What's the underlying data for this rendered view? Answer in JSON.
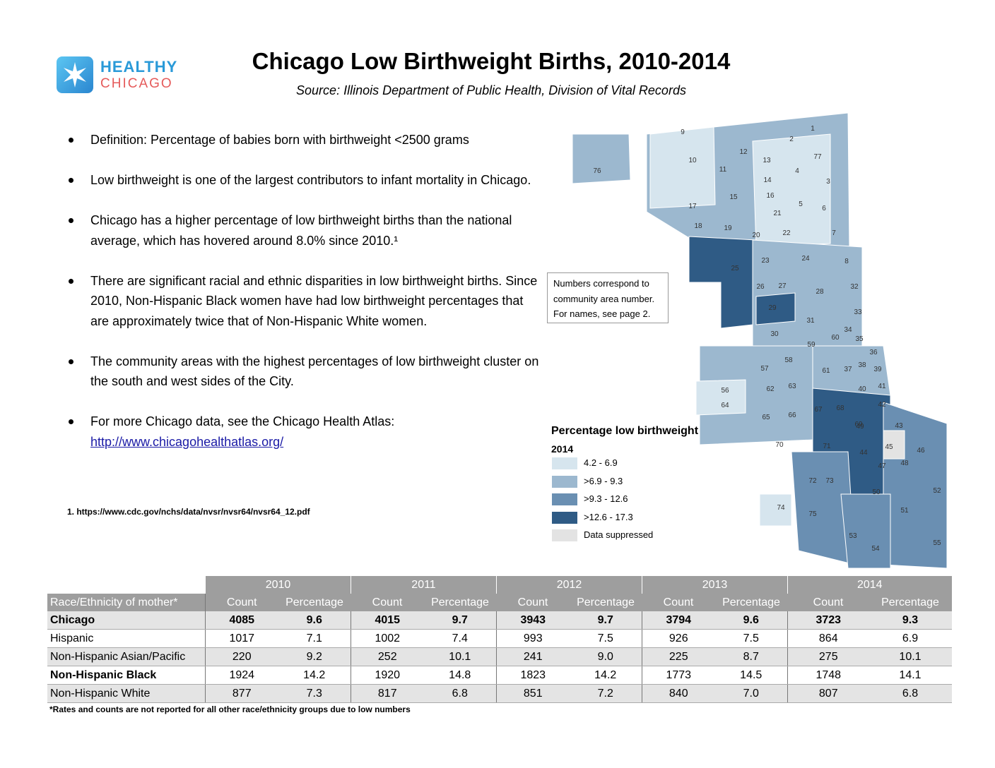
{
  "logo": {
    "line1": "HEALTHY",
    "line2": "CHICAGO",
    "icon": "star-icon"
  },
  "title": "Chicago Low Birthweight Births, 2010-2014",
  "source": "Source:   Illinois Department of Public Health, Division of Vital Records",
  "bullets": [
    "Definition: Percentage of babies born with birthweight <2500 grams",
    "Low birthweight is one of the largest contributors to infant mortality in Chicago.",
    "Chicago has a higher percentage of low birthweight births than the national average, which has hovered around 8.0% since 2010.¹",
    "There are significant racial and ethnic disparities in low birthweight births. Since 2010, Non-Hispanic Black women have had low birthweight percentages that are approximately twice that of Non-Hispanic White women.",
    "The community areas with the highest percentages of low birthweight cluster on the south and west sides of the City.",
    "For more Chicago data, see the Chicago Health Atlas:"
  ],
  "atlas_link": "http://www.chicagohealthatlas.org/",
  "footnote": "1. https://www.cdc.gov/nchs/data/nvsr/nvsr64/nvsr64_12.pdf",
  "callout": [
    "Numbers correspond to",
    "community area number.",
    "For names, see page 2."
  ],
  "legend": {
    "title": "Percentage low birthweight",
    "year": "2014",
    "items": [
      {
        "label": "4.2 - 6.9",
        "color": "#d6e5ee"
      },
      {
        "label": ">6.9 - 9.3",
        "color": "#9cb8cf"
      },
      {
        "label": ">9.3 - 12.6",
        "color": "#6a8fb2"
      },
      {
        "label": ">12.6 - 17.3",
        "color": "#2f5b85"
      },
      {
        "label": "Data suppressed",
        "color": "#e3e3e3"
      }
    ]
  },
  "map_labels": [
    "1",
    "2",
    "3",
    "4",
    "5",
    "6",
    "7",
    "8",
    "9",
    "10",
    "11",
    "12",
    "13",
    "14",
    "15",
    "16",
    "17",
    "18",
    "19",
    "20",
    "21",
    "22",
    "23",
    "24",
    "25",
    "26",
    "27",
    "28",
    "29",
    "30",
    "31",
    "32",
    "33",
    "34",
    "35",
    "36",
    "37",
    "38",
    "39",
    "40",
    "41",
    "42",
    "43",
    "44",
    "45",
    "46",
    "47",
    "48",
    "49",
    "50",
    "51",
    "52",
    "53",
    "54",
    "55",
    "56",
    "57",
    "58",
    "59",
    "60",
    "61",
    "62",
    "63",
    "64",
    "65",
    "66",
    "67",
    "68",
    "69",
    "70",
    "71",
    "72",
    "73",
    "74",
    "75",
    "76",
    "77"
  ],
  "table": {
    "years": [
      "2010",
      "2011",
      "2012",
      "2013",
      "2014"
    ],
    "row_header": "Race/Ethnicity of mother*",
    "col_count": "Count",
    "col_pct": "Percentage",
    "rows": [
      {
        "label": "Chicago",
        "values": [
          "4085",
          "9.6",
          "4015",
          "9.7",
          "3943",
          "9.7",
          "3794",
          "9.6",
          "3723",
          "9.3"
        ]
      },
      {
        "label": "Hispanic",
        "values": [
          "1017",
          "7.1",
          "1002",
          "7.4",
          "993",
          "7.5",
          "926",
          "7.5",
          "864",
          "6.9"
        ]
      },
      {
        "label": "Non-Hispanic Asian/Pacific",
        "values": [
          "220",
          "9.2",
          "252",
          "10.1",
          "241",
          "9.0",
          "225",
          "8.7",
          "275",
          "10.1"
        ]
      },
      {
        "label": "Non-Hispanic Black",
        "values": [
          "1924",
          "14.2",
          "1920",
          "14.8",
          "1823",
          "14.2",
          "1773",
          "14.5",
          "1748",
          "14.1"
        ]
      },
      {
        "label": "Non-Hispanic White",
        "values": [
          "877",
          "7.3",
          "817",
          "6.8",
          "851",
          "7.2",
          "840",
          "7.0",
          "807",
          "6.8"
        ]
      }
    ],
    "note": "*Rates and counts are not reported for all other race/ethnicity groups due to low numbers"
  }
}
